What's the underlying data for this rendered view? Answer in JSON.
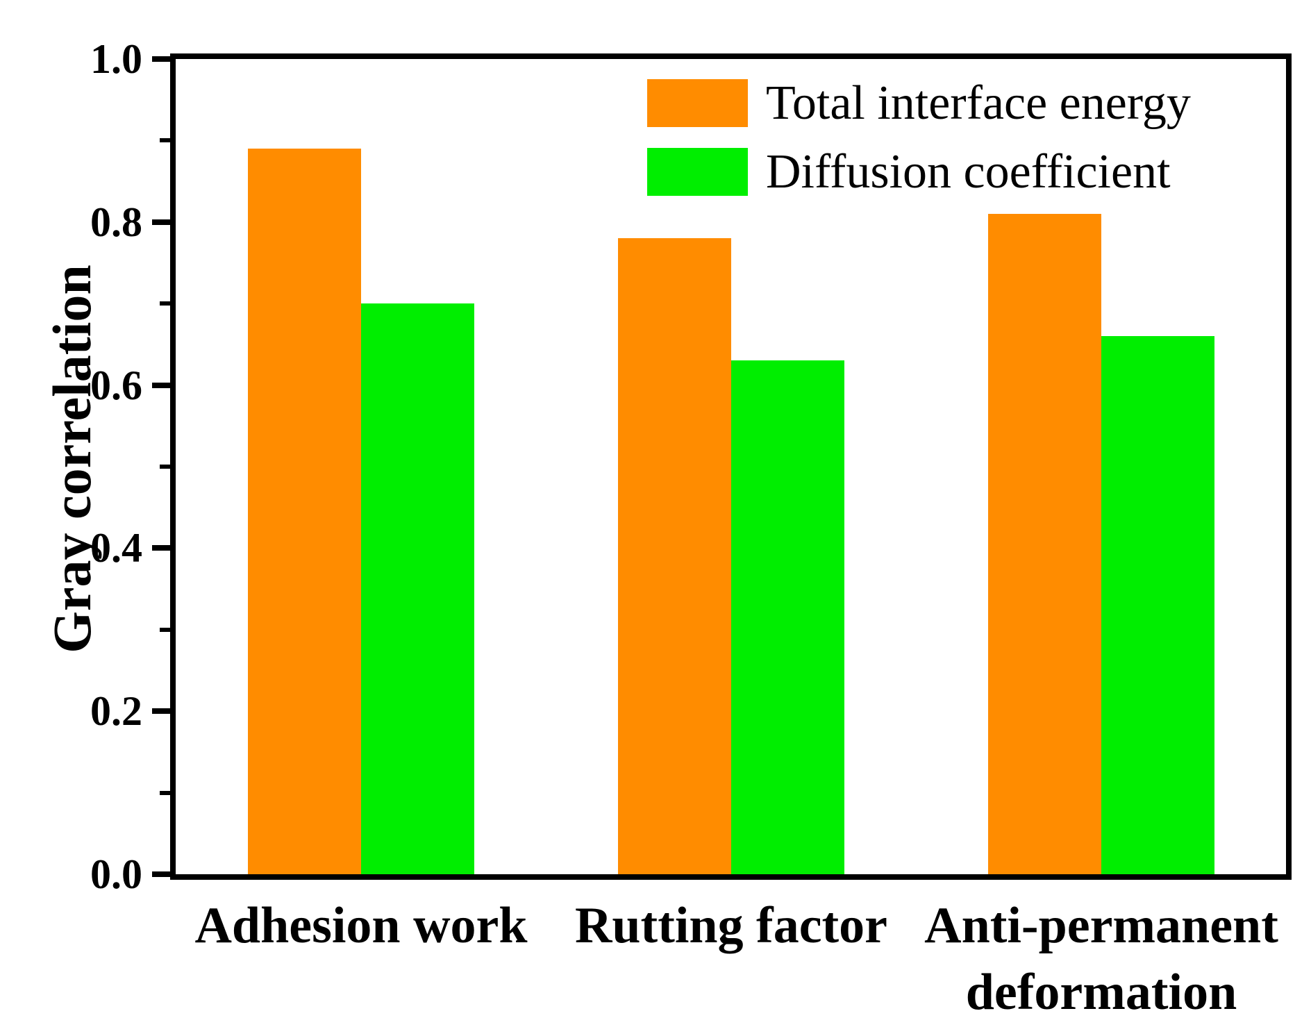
{
  "chart_data": {
    "type": "bar",
    "title": "",
    "xlabel": "",
    "ylabel": "Gray correlation",
    "categories": [
      "Adhesion work",
      "Rutting factor",
      "Anti-permanent\ndeformation"
    ],
    "series": [
      {
        "name": "Total interface energy",
        "color": "#FF8C00",
        "values": [
          0.89,
          0.78,
          0.81
        ]
      },
      {
        "name": "Diffusion coefficient",
        "color": "#00EE00",
        "values": [
          0.7,
          0.63,
          0.66
        ]
      }
    ],
    "ylim": [
      0.0,
      1.0
    ],
    "y_major_ticks": [
      1.0,
      0.8,
      0.6,
      0.4,
      0.2,
      0.0
    ],
    "y_tick_labels": [
      "1.0",
      "0.8",
      "0.6",
      "0.4",
      "0.2",
      "0.0"
    ],
    "y_minor_ticks": [
      0.9,
      0.7,
      0.5,
      0.3,
      0.1
    ],
    "grid": false,
    "legend_position": "upper center-right, no frame",
    "frame": "full box, black, ticks outside on left axis only",
    "colors": {
      "axis": "#000000",
      "background": "#ffffff"
    }
  }
}
